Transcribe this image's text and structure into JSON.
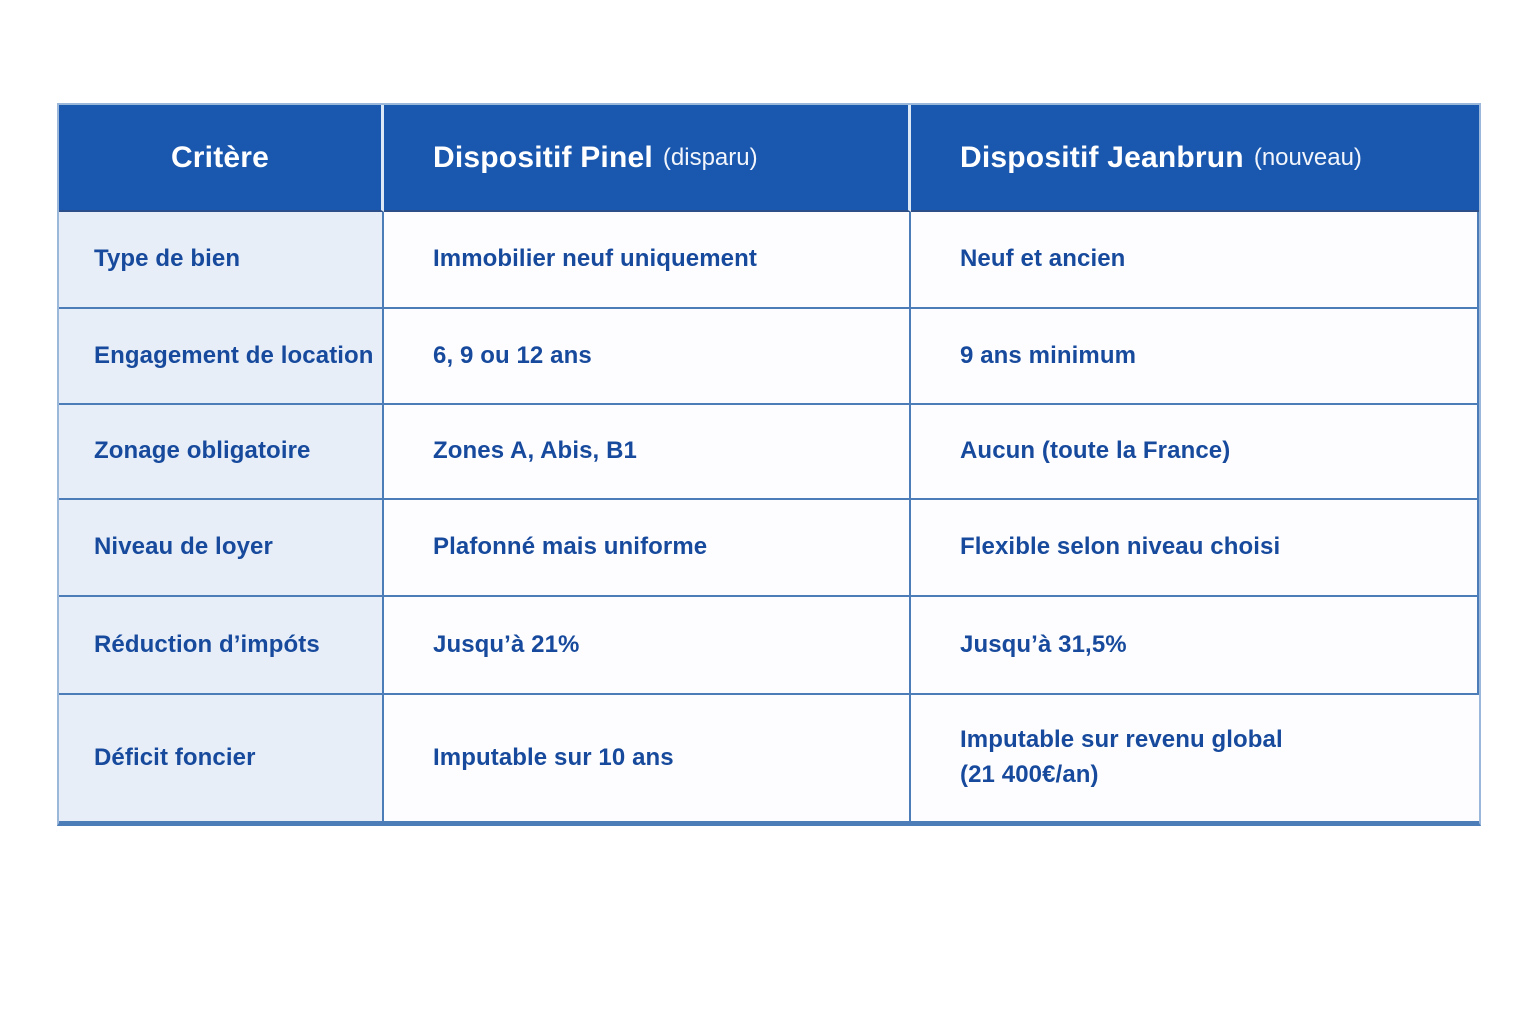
{
  "table": {
    "header": {
      "criterion": "Critère",
      "pinel_title": "Dispositif Pinel",
      "pinel_subtitle": "(disparu)",
      "jeanbrun_title": "Dispositif Jeanbrun",
      "jeanbrun_subtitle": "(nouveau)"
    },
    "rows": [
      {
        "criterion": "Type de bien",
        "pinel": "Immobilier neuf uniquement",
        "jeanbrun": "Neuf et ancien"
      },
      {
        "criterion": "Engagement de location",
        "pinel": "6, 9 ou 12 ans",
        "jeanbrun": "9 ans minimum"
      },
      {
        "criterion": "Zonage obligatoire",
        "pinel": "Zones A, Abis, B1",
        "jeanbrun": "Aucun (toute la France)"
      },
      {
        "criterion": "Niveau de loyer",
        "pinel": "Plafonné mais uniforme",
        "jeanbrun": "Flexible selon niveau choisi"
      },
      {
        "criterion": "Réduction d’impóts",
        "pinel": "Jusqu’à 21%",
        "jeanbrun": "Jusqu’à 31,5%"
      },
      {
        "criterion": "Déficit foncier",
        "pinel": "Imputable sur 10 ans",
        "jeanbrun": "Imputable sur revenu global",
        "jeanbrun_line2": "(21 400€/an)"
      }
    ]
  },
  "colors": {
    "header_bg": "#1a57ae",
    "header_text": "#ffffff",
    "body_text": "#174a9c",
    "criterion_col_bg": "#e7eef8",
    "value_col_bg": "#fdfdff",
    "grid_line": "#4d7db8",
    "page_bg": "#ffffff"
  }
}
